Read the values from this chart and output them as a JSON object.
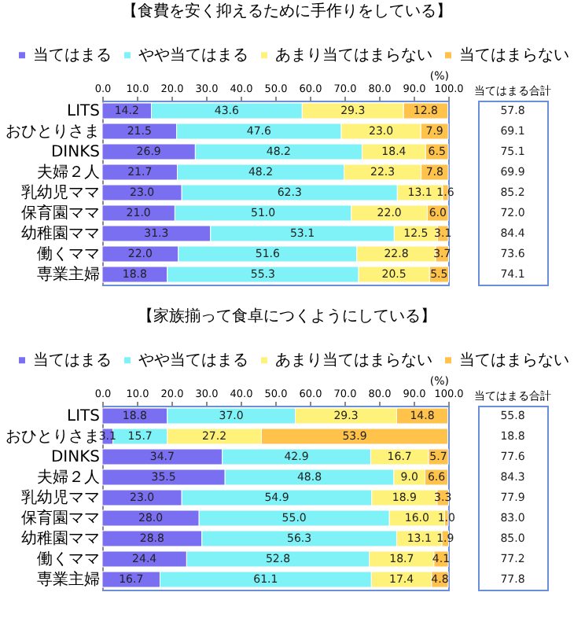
{
  "chart_data": [
    {
      "type": "bar",
      "orientation": "horizontal",
      "stacked": true,
      "grid": false,
      "legend": "top",
      "title": "【食費を安く抑えるために手作りをしている】",
      "xlabel": "(%)",
      "categories": [
        "LITS",
        "おひとりさま",
        "DINKS",
        "夫婦２人",
        "乳幼児ママ",
        "保育園ママ",
        "幼稚園ママ",
        "働くママ",
        "専業主婦"
      ],
      "xlim": [
        0,
        100
      ],
      "xticks": [
        {
          "value": 0,
          "label": "0.0"
        },
        {
          "value": 10,
          "label": "10.0"
        },
        {
          "value": 20,
          "label": "20.0"
        },
        {
          "value": 30,
          "label": "30.0"
        },
        {
          "value": 40,
          "label": "40.0"
        },
        {
          "value": 50,
          "label": "50.0"
        },
        {
          "value": 60,
          "label": "60.0"
        },
        {
          "value": 70,
          "label": "70.0"
        },
        {
          "value": 80,
          "label": "80.0"
        },
        {
          "value": 90,
          "label": "90.0"
        },
        {
          "value": 100,
          "label": "100.0"
        }
      ],
      "series": [
        {
          "name": "当てはまる",
          "color": "#7a6ff0",
          "values": [
            14.2,
            21.5,
            26.9,
            21.7,
            23.0,
            21.0,
            31.3,
            22.0,
            18.8
          ],
          "value_labels": [
            "14.2",
            "21.5",
            "26.9",
            "21.7",
            "23.0",
            "21.0",
            "31.3",
            "22.0",
            "18.8"
          ]
        },
        {
          "name": "やや当てはまる",
          "color": "#7ff2f8",
          "values": [
            43.6,
            47.6,
            48.2,
            48.2,
            62.3,
            51.0,
            53.1,
            51.6,
            55.3
          ],
          "value_labels": [
            "43.6",
            "47.6",
            "48.2",
            "48.2",
            "62.3",
            "51.0",
            "53.1",
            "51.6",
            "55.3"
          ]
        },
        {
          "name": "あまり当てはまらない",
          "color": "#fff27a",
          "values": [
            29.3,
            23.0,
            18.4,
            22.3,
            13.1,
            22.0,
            12.5,
            22.8,
            20.5
          ],
          "value_labels": [
            "29.3",
            "23.0",
            "18.4",
            "22.3",
            "13.1",
            "22.0",
            "12.5",
            "22.8",
            "20.5"
          ]
        },
        {
          "name": "当てはまらない",
          "color": "#ffc24a",
          "values": [
            12.8,
            7.9,
            6.5,
            7.8,
            1.6,
            6.0,
            3.1,
            3.7,
            5.5
          ],
          "value_labels": [
            "12.8",
            "7.9",
            "6.5",
            "7.8",
            "1.6",
            "6.0",
            "3.1",
            "3.7",
            "5.5"
          ]
        }
      ],
      "annotations": [
        "当てはまる合計",
        "57.8",
        "69.1",
        "75.1",
        "69.9",
        "85.2",
        "72.0",
        "84.4",
        "73.6",
        "74.1"
      ]
    },
    {
      "type": "bar",
      "orientation": "horizontal",
      "stacked": true,
      "grid": false,
      "legend": "top",
      "title": "【家族揃って食卓につくようにしている】",
      "xlabel": "(%)",
      "categories": [
        "LITS",
        "おひとりさま",
        "DINKS",
        "夫婦２人",
        "乳幼児ママ",
        "保育園ママ",
        "幼稚園ママ",
        "働くママ",
        "専業主婦"
      ],
      "xlim": [
        0,
        100
      ],
      "xticks": [
        {
          "value": 0,
          "label": "0.0"
        },
        {
          "value": 10,
          "label": "10.0"
        },
        {
          "value": 20,
          "label": "20.0"
        },
        {
          "value": 30,
          "label": "30.0"
        },
        {
          "value": 40,
          "label": "40.0"
        },
        {
          "value": 50,
          "label": "50.0"
        },
        {
          "value": 60,
          "label": "60.0"
        },
        {
          "value": 70,
          "label": "70.0"
        },
        {
          "value": 80,
          "label": "80.0"
        },
        {
          "value": 90,
          "label": "90.0"
        },
        {
          "value": 100,
          "label": "100.0"
        }
      ],
      "series": [
        {
          "name": "当てはまる",
          "color": "#7a6ff0",
          "values": [
            18.8,
            3.1,
            34.7,
            35.5,
            23.0,
            28.0,
            28.8,
            24.4,
            16.7
          ],
          "value_labels": [
            "18.8",
            "3.1",
            "34.7",
            "35.5",
            "23.0",
            "28.0",
            "28.8",
            "24.4",
            "16.7"
          ]
        },
        {
          "name": "やや当てはまる",
          "color": "#7ff2f8",
          "values": [
            37.0,
            15.7,
            42.9,
            48.8,
            54.9,
            55.0,
            56.3,
            52.8,
            61.1
          ],
          "value_labels": [
            "37.0",
            "15.7",
            "42.9",
            "48.8",
            "54.9",
            "55.0",
            "56.3",
            "52.8",
            "61.1"
          ]
        },
        {
          "name": "あまり当てはまらない",
          "color": "#fff27a",
          "values": [
            29.3,
            27.2,
            16.7,
            9.0,
            18.9,
            16.0,
            13.1,
            18.7,
            17.4
          ],
          "value_labels": [
            "29.3",
            "27.2",
            "16.7",
            "9.0",
            "18.9",
            "16.0",
            "13.1",
            "18.7",
            "17.4"
          ]
        },
        {
          "name": "当てはまらない",
          "color": "#ffc24a",
          "values": [
            14.8,
            53.9,
            5.7,
            6.6,
            3.3,
            1.0,
            1.9,
            4.1,
            4.8
          ],
          "value_labels": [
            "14.8",
            "53.9",
            "5.7",
            "6.6",
            "3.3",
            "1.0",
            "1.9",
            "4.1",
            "4.8"
          ]
        }
      ],
      "annotations": [
        "当てはまる合計",
        "55.8",
        "18.8",
        "77.6",
        "84.3",
        "77.9",
        "83.0",
        "85.0",
        "77.2",
        "77.8"
      ]
    }
  ]
}
